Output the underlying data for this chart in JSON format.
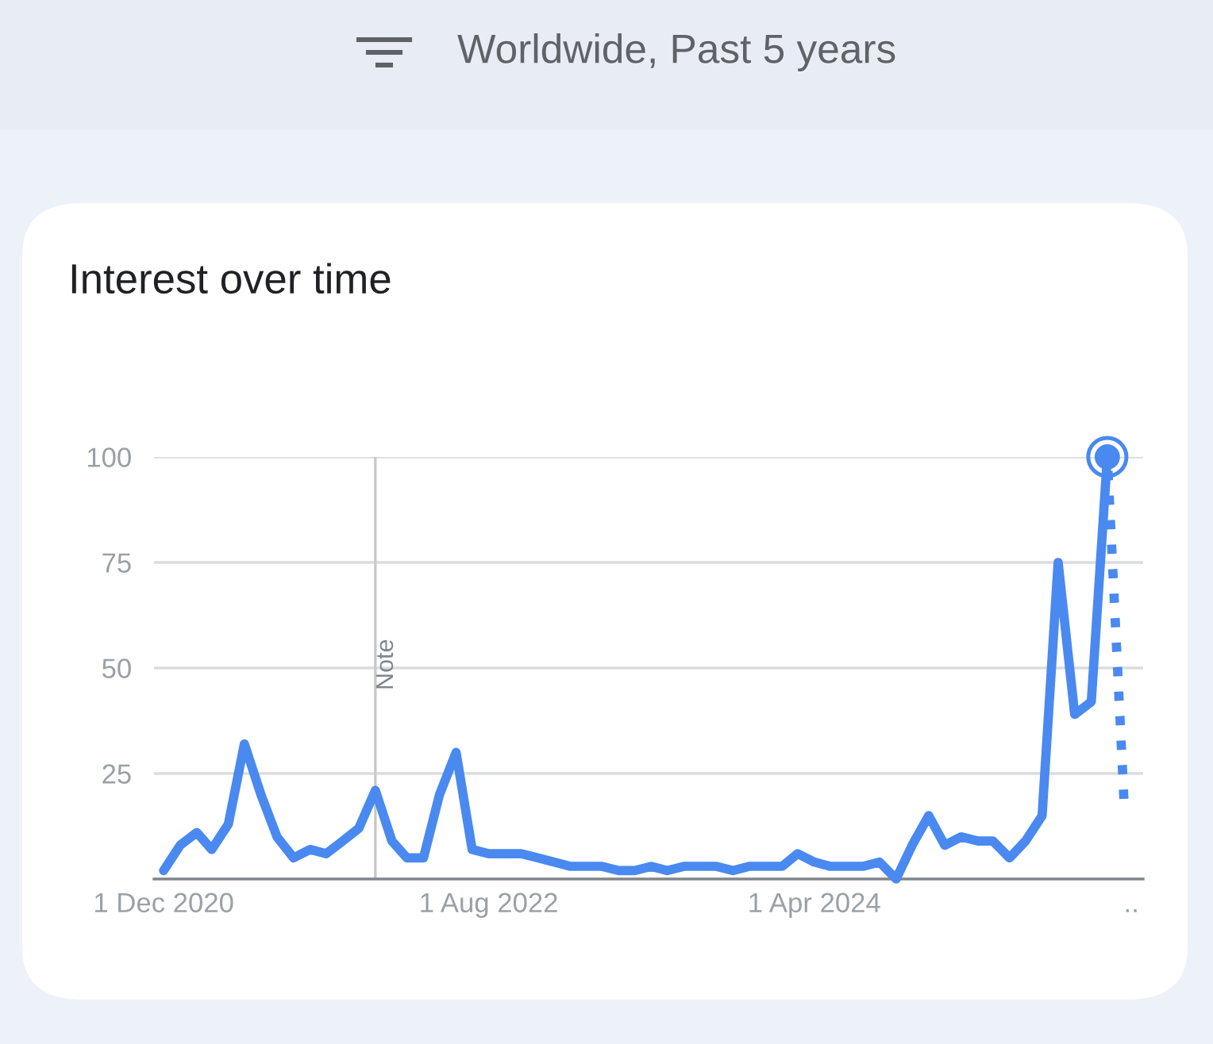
{
  "chart_data": {
    "type": "line",
    "title": "Interest over time",
    "subtitle": "Worldwide, Past 5 years",
    "series": [
      {
        "color": "#4a89f0",
        "line_style": "solid",
        "x": [
          "2020-12",
          "2021-01",
          "2021-02",
          "2021-03",
          "2021-04",
          "2021-05",
          "2021-06",
          "2021-07",
          "2021-08",
          "2021-09",
          "2021-10",
          "2021-11",
          "2021-12",
          "2022-01",
          "2022-02",
          "2022-03",
          "2022-04",
          "2022-05",
          "2022-06",
          "2022-07",
          "2022-08",
          "2022-09",
          "2022-10",
          "2022-11",
          "2022-12",
          "2023-01",
          "2023-02",
          "2023-03",
          "2023-04",
          "2023-05",
          "2023-06",
          "2023-07",
          "2023-08",
          "2023-09",
          "2023-10",
          "2023-11",
          "2023-12",
          "2024-01",
          "2024-02",
          "2024-03",
          "2024-04",
          "2024-05",
          "2024-06",
          "2024-07",
          "2024-08",
          "2024-09",
          "2024-10",
          "2024-11",
          "2024-12",
          "2025-01",
          "2025-02",
          "2025-03",
          "2025-04",
          "2025-05",
          "2025-06",
          "2025-07",
          "2025-08",
          "2025-09",
          "2025-10"
        ],
        "values": [
          2,
          8,
          11,
          7,
          13,
          32,
          20,
          10,
          5,
          7,
          6,
          9,
          12,
          21,
          9,
          5,
          5,
          20,
          30,
          7,
          6,
          6,
          6,
          5,
          4,
          3,
          3,
          3,
          2,
          2,
          3,
          2,
          3,
          3,
          3,
          2,
          3,
          3,
          3,
          6,
          4,
          3,
          3,
          3,
          4,
          0,
          8,
          15,
          8,
          10,
          9,
          9,
          5,
          9,
          15,
          75,
          39,
          42,
          100
        ]
      },
      {
        "color": "#4a89f0",
        "line_style": "dotted",
        "x": [
          "2025-10",
          "2025-11"
        ],
        "values": [
          100,
          19
        ]
      },
      {
        "type": "scatter",
        "marker": "circle",
        "color": "#4a89f0",
        "x": [
          "2025-10"
        ],
        "values": [
          100
        ]
      }
    ],
    "xlim": [
      "2020-11-13",
      "2025-12-07"
    ],
    "xticks": [
      {
        "value": "2020-12-01",
        "label": "1 Dec 2020"
      },
      {
        "value": "2022-08-01",
        "label": "1 Aug 2022"
      },
      {
        "value": "2024-04-01",
        "label": "1 Apr 2024"
      },
      {
        "value": "2025-11-15",
        "label": ".."
      }
    ],
    "ylim": [
      0,
      100
    ],
    "yticks": [
      25,
      50,
      75,
      100
    ],
    "grid": "y",
    "ref_lines": [
      {
        "axis": "x",
        "value": "2022-01-01",
        "label": "Note",
        "color": "#c8c8c8",
        "line_style": "solid"
      }
    ]
  }
}
